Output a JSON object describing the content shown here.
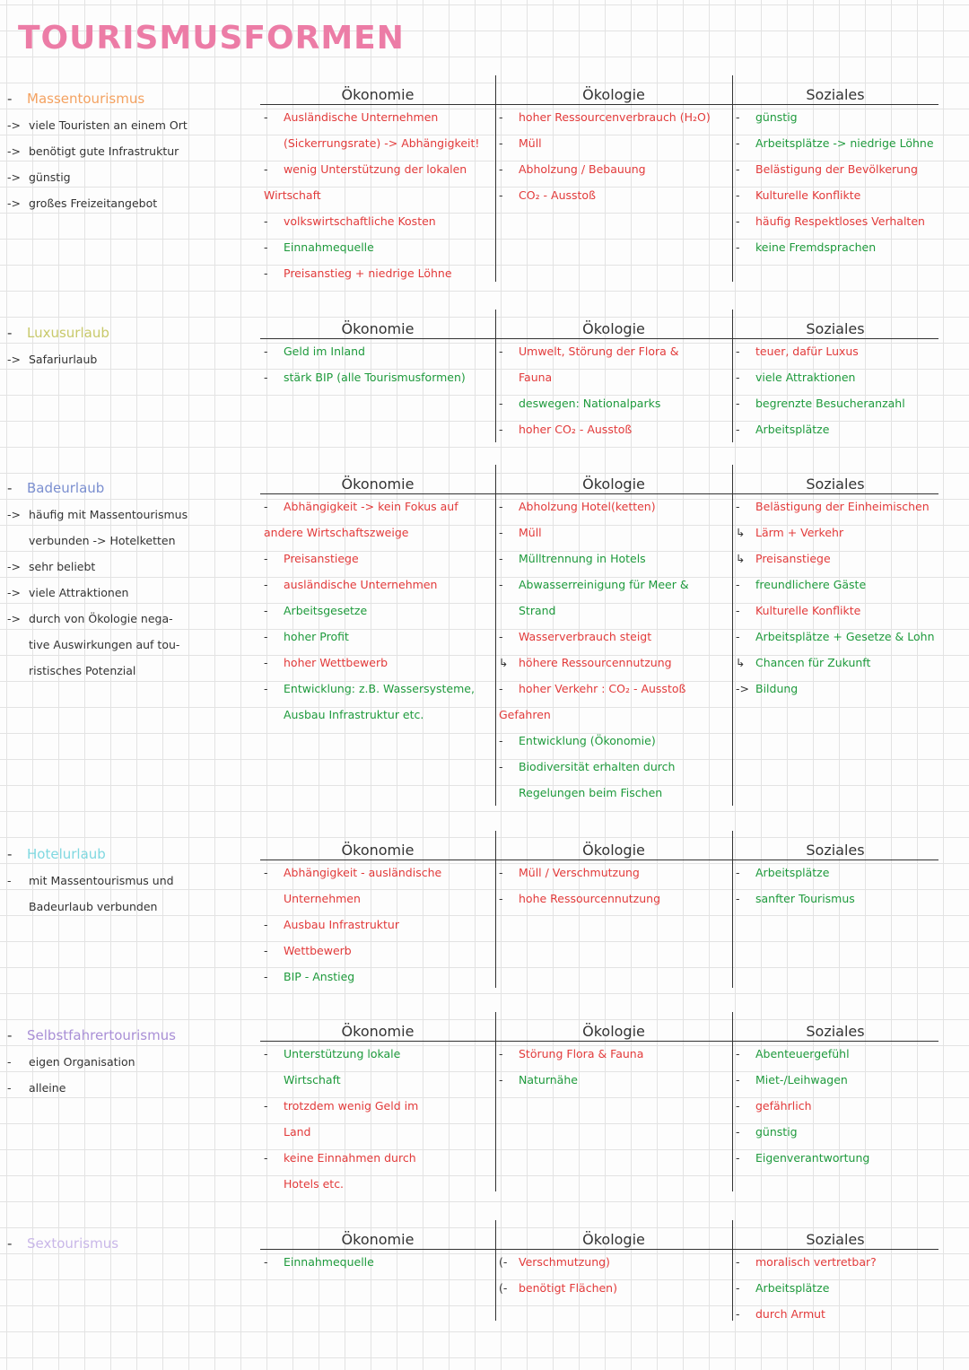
{
  "title": "TOURISMUSFORMEN",
  "col_headers": {
    "first": [
      "Ökonomie",
      "Ökologie",
      "Soziales"
    ],
    "rest": [
      "Ökonomie",
      "Ökologie",
      "Soziales"
    ]
  },
  "sections": [
    {
      "name": "Massentourismus",
      "color": "#f4a261",
      "notes": [
        {
          "marker": "->",
          "text": "viele Touristen an einem Ort"
        },
        {
          "marker": "->",
          "text": "benötigt gute Infrastruktur"
        },
        {
          "marker": "->",
          "text": "günstig"
        },
        {
          "marker": "->",
          "text": "großes Freizeitangebot"
        }
      ],
      "oekonomie": [
        {
          "b": "-",
          "t": "Ausländische Unternehmen",
          "c": "red"
        },
        {
          "b": "",
          "t": "(Sickerrungsrate) -> Abhängigkeit!",
          "c": "red"
        },
        {
          "b": "-",
          "t": "wenig Unterstützung der lokalen",
          "c": "red"
        },
        {
          "b": "",
          "t": "Wirtschaft",
          "c": "red",
          "noindent": true
        },
        {
          "b": "-",
          "t": "volkswirtschaftliche Kosten",
          "c": "red"
        },
        {
          "b": "-",
          "t": "Einnahmequelle",
          "c": "green"
        },
        {
          "b": "-",
          "t": "Preisanstieg + niedrige Löhne",
          "c": "red"
        }
      ],
      "oekologie": [
        {
          "b": "-",
          "t": "hoher Ressourcenverbrauch (H₂O)",
          "c": "red"
        },
        {
          "b": "-",
          "t": "Müll",
          "c": "red"
        },
        {
          "b": "-",
          "t": "Abholzung / Bebauung",
          "c": "red"
        },
        {
          "b": "-",
          "t": "CO₂ - Ausstoß",
          "c": "red"
        }
      ],
      "soziales": [
        {
          "b": "-",
          "t": "günstig",
          "c": "green"
        },
        {
          "b": "-",
          "t": "Arbeitsplätze -> niedrige Löhne",
          "c": "green"
        },
        {
          "b": "-",
          "t": "Belästigung der Bevölkerung",
          "c": "red"
        },
        {
          "b": "-",
          "t": "Kulturelle Konflikte",
          "c": "red"
        },
        {
          "b": "-",
          "t": "häufig Respektloses Verhalten",
          "c": "red"
        },
        {
          "b": "-",
          "t": "keine Fremdsprachen",
          "c": "green"
        }
      ]
    },
    {
      "name": "Luxusurlaub",
      "color": "#c8c96a",
      "notes": [
        {
          "marker": "->",
          "text": "Safariurlaub"
        }
      ],
      "oekonomie": [
        {
          "b": "-",
          "t": "Geld im Inland",
          "c": "green"
        },
        {
          "b": "-",
          "t": "stärk BIP (alle Tourismusformen)",
          "c": "green"
        }
      ],
      "oekologie": [
        {
          "b": "-",
          "t": "Umwelt, Störung der Flora &",
          "c": "red"
        },
        {
          "b": "",
          "t": "Fauna",
          "c": "red"
        },
        {
          "b": "-",
          "t": "deswegen: Nationalparks",
          "c": "green"
        },
        {
          "b": "-",
          "t": "hoher CO₂ - Ausstoß",
          "c": "red"
        }
      ],
      "soziales": [
        {
          "b": "-",
          "t": "teuer, dafür Luxus",
          "c": "red"
        },
        {
          "b": "-",
          "t": "viele Attraktionen",
          "c": "green"
        },
        {
          "b": "-",
          "t": "begrenzte Besucheranzahl",
          "c": "green"
        },
        {
          "b": "-",
          "t": "Arbeitsplätze",
          "c": "green"
        }
      ]
    },
    {
      "name": "Badeurlaub",
      "color": "#7b8fd0",
      "notes": [
        {
          "marker": "->",
          "text": "häufig mit Massentourismus"
        },
        {
          "marker": "",
          "text": "verbunden -> Hotelketten"
        },
        {
          "marker": "->",
          "text": "sehr beliebt"
        },
        {
          "marker": "->",
          "text": "viele Attraktionen"
        },
        {
          "marker": "->",
          "text": "durch von Ökologie nega-"
        },
        {
          "marker": "",
          "text": "tive Auswirkungen auf tou-"
        },
        {
          "marker": "",
          "text": "ristisches Potenzial"
        }
      ],
      "oekonomie": [
        {
          "b": "-",
          "t": "Abhängigkeit -> kein Fokus auf",
          "c": "red"
        },
        {
          "b": "",
          "t": "andere Wirtschaftszweige",
          "c": "red",
          "noindent": true
        },
        {
          "b": "-",
          "t": "Preisanstiege",
          "c": "red"
        },
        {
          "b": "-",
          "t": "ausländische Unternehmen",
          "c": "red"
        },
        {
          "b": "-",
          "t": "Arbeitsgesetze",
          "c": "green"
        },
        {
          "b": "-",
          "t": "hoher Profit",
          "c": "green"
        },
        {
          "b": "-",
          "t": "hoher Wettbewerb",
          "c": "red"
        },
        {
          "b": "-",
          "t": "Entwicklung: z.B. Wassersysteme,",
          "c": "green"
        },
        {
          "b": "",
          "t": "Ausbau Infrastruktur etc.",
          "c": "green"
        }
      ],
      "oekologie": [
        {
          "b": "-",
          "t": "Abholzung Hotel(ketten)",
          "c": "red"
        },
        {
          "b": "-",
          "t": "Müll",
          "c": "red"
        },
        {
          "b": "-",
          "t": "Mülltrennung in Hotels",
          "c": "green"
        },
        {
          "b": "-",
          "t": "Abwasserreinigung für Meer &",
          "c": "green"
        },
        {
          "b": "",
          "t": "Strand",
          "c": "green"
        },
        {
          "b": "-",
          "t": "Wasserverbrauch steigt",
          "c": "red"
        },
        {
          "b": "↳",
          "t": "höhere Ressourcennutzung",
          "c": "red"
        },
        {
          "b": "-",
          "t": "hoher Verkehr : CO₂ - Ausstoß",
          "c": "red"
        },
        {
          "b": "",
          "t": "Gefahren",
          "c": "red",
          "noindent": true
        },
        {
          "b": "-",
          "t": "Entwicklung (Ökonomie)",
          "c": "green"
        },
        {
          "b": "-",
          "t": "Biodiversität erhalten durch",
          "c": "green"
        },
        {
          "b": "",
          "t": "Regelungen beim Fischen",
          "c": "green"
        }
      ],
      "soziales": [
        {
          "b": "-",
          "t": "Belästigung der Einheimischen",
          "c": "red"
        },
        {
          "b": "↳",
          "t": "Lärm + Verkehr",
          "c": "red"
        },
        {
          "b": "↳",
          "t": "Preisanstiege",
          "c": "red"
        },
        {
          "b": "-",
          "t": "freundlichere Gäste",
          "c": "green"
        },
        {
          "b": "-",
          "t": "Kulturelle Konflikte",
          "c": "red"
        },
        {
          "b": "-",
          "t": "Arbeitsplätze + Gesetze & Lohn",
          "c": "green"
        },
        {
          "b": "↳",
          "t": "Chancen für Zukunft",
          "c": "green"
        },
        {
          "b": "->",
          "t": "Bildung",
          "c": "green"
        }
      ]
    },
    {
      "name": "Hotelurlaub",
      "color": "#7fd8e0",
      "notes": [
        {
          "marker": "-",
          "text": "mit Massentourismus und"
        },
        {
          "marker": "",
          "text": "Badeurlaub verbunden"
        }
      ],
      "oekonomie": [
        {
          "b": "-",
          "t": "Abhängigkeit - ausländische",
          "c": "red"
        },
        {
          "b": "",
          "t": "Unternehmen",
          "c": "red"
        },
        {
          "b": "-",
          "t": "Ausbau Infrastruktur",
          "c": "red"
        },
        {
          "b": "-",
          "t": "Wettbewerb",
          "c": "red"
        },
        {
          "b": "-",
          "t": "BIP - Anstieg",
          "c": "green"
        }
      ],
      "oekologie": [
        {
          "b": "-",
          "t": "Müll / Verschmutzung",
          "c": "red"
        },
        {
          "b": "-",
          "t": "hohe Ressourcennutzung",
          "c": "red"
        }
      ],
      "soziales": [
        {
          "b": "-",
          "t": "Arbeitsplätze",
          "c": "green"
        },
        {
          "b": "-",
          "t": "sanfter Tourismus",
          "c": "green"
        }
      ]
    },
    {
      "name": "Selbstfahrertourismus",
      "color": "#a98fd6",
      "notes": [
        {
          "marker": "-",
          "text": "eigen Organisation"
        },
        {
          "marker": "-",
          "text": "alleine"
        }
      ],
      "oekonomie": [
        {
          "b": "-",
          "t": "Unterstützung lokale",
          "c": "green"
        },
        {
          "b": "",
          "t": "Wirtschaft",
          "c": "green"
        },
        {
          "b": "-",
          "t": "trotzdem wenig Geld im",
          "c": "red"
        },
        {
          "b": "",
          "t": "Land",
          "c": "red"
        },
        {
          "b": "-",
          "t": "keine Einnahmen durch",
          "c": "red"
        },
        {
          "b": "",
          "t": "Hotels etc.",
          "c": "red"
        }
      ],
      "oekologie": [
        {
          "b": "-",
          "t": "Störung Flora & Fauna",
          "c": "red"
        },
        {
          "b": "-",
          "t": "Naturnähe",
          "c": "green"
        }
      ],
      "soziales": [
        {
          "b": "-",
          "t": "Abenteuergefühl",
          "c": "green"
        },
        {
          "b": "-",
          "t": "Miet-/Leihwagen",
          "c": "green"
        },
        {
          "b": "-",
          "t": "gefährlich",
          "c": "red"
        },
        {
          "b": "-",
          "t": "günstig",
          "c": "green"
        },
        {
          "b": "-",
          "t": "Eigenverantwortung",
          "c": "green"
        }
      ]
    },
    {
      "name": "Sextourismus",
      "color": "#c9b7e8",
      "notes": [],
      "oekonomie": [
        {
          "b": "-",
          "t": "Einnahmequelle",
          "c": "green"
        }
      ],
      "oekologie": [
        {
          "b": "(-",
          "t": "Verschmutzung)",
          "c": "red"
        },
        {
          "b": "(-",
          "t": "benötigt Flächen)",
          "c": "red"
        }
      ],
      "soziales": [
        {
          "b": "-",
          "t": "moralisch vertretbar?",
          "c": "red"
        },
        {
          "b": "-",
          "t": "Arbeitsplätze",
          "c": "green"
        },
        {
          "b": "-",
          "t": "durch Armut",
          "c": "red"
        }
      ]
    }
  ]
}
